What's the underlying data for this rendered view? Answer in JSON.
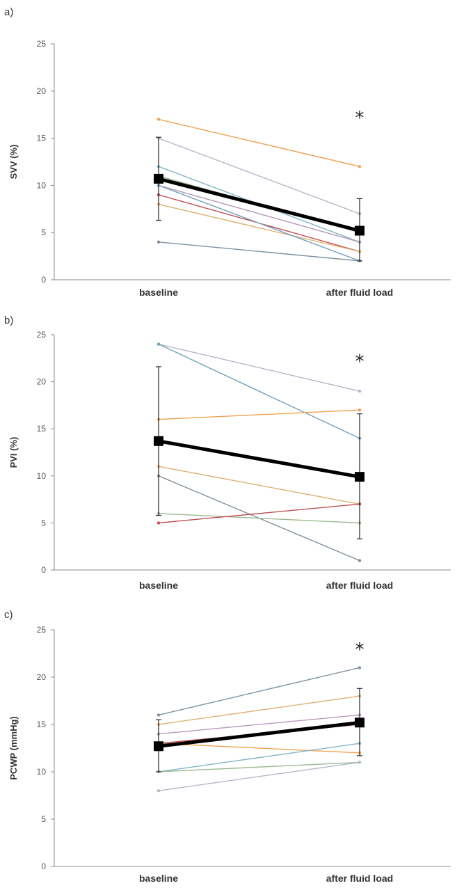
{
  "chart_data": [
    {
      "type": "line",
      "panel_label": "a)",
      "ylabel": "SVV (%)",
      "categories": [
        "baseline",
        "after fluid load"
      ],
      "ylim": [
        0,
        25
      ],
      "yticks": [
        0,
        5,
        10,
        15,
        20,
        25
      ],
      "significance": "*",
      "mean": {
        "values": [
          10.7,
          5.2
        ],
        "error": [
          [
            6.3,
            15.1
          ],
          [
            2.0,
            8.6
          ]
        ],
        "color": "#000000"
      },
      "series": [
        {
          "values": [
            17,
            12
          ],
          "color": "#f0a050"
        },
        {
          "values": [
            15,
            7
          ],
          "color": "#b0b8c8"
        },
        {
          "values": [
            12,
            4
          ],
          "color": "#7fb6c8"
        },
        {
          "values": [
            11,
            5
          ],
          "color": "#9db890"
        },
        {
          "values": [
            10,
            4
          ],
          "color": "#b59ab8"
        },
        {
          "values": [
            9,
            3
          ],
          "color": "#c05050"
        },
        {
          "values": [
            8,
            3
          ],
          "color": "#e0b070"
        },
        {
          "values": [
            10,
            2
          ],
          "color": "#70a0b8"
        },
        {
          "values": [
            4,
            2
          ],
          "color": "#8090a0"
        }
      ]
    },
    {
      "type": "line",
      "panel_label": "b)",
      "ylabel": "PVI (%)",
      "categories": [
        "baseline",
        "after fluid load"
      ],
      "ylim": [
        0,
        25
      ],
      "yticks": [
        0,
        5,
        10,
        15,
        20,
        25
      ],
      "significance": "*",
      "mean": {
        "values": [
          13.7,
          9.9
        ],
        "error": [
          [
            5.8,
            21.6
          ],
          [
            3.3,
            16.6
          ]
        ],
        "color": "#000000"
      },
      "series": [
        {
          "values": [
            24,
            19
          ],
          "color": "#b0b8c8"
        },
        {
          "values": [
            24,
            14
          ],
          "color": "#70a0b8"
        },
        {
          "values": [
            16,
            17
          ],
          "color": "#f0a050"
        },
        {
          "values": [
            11,
            7
          ],
          "color": "#e0b070"
        },
        {
          "values": [
            10,
            1
          ],
          "color": "#8090a0"
        },
        {
          "values": [
            6,
            5
          ],
          "color": "#9db890"
        },
        {
          "values": [
            5,
            7
          ],
          "color": "#c05050"
        }
      ]
    },
    {
      "type": "line",
      "panel_label": "c)",
      "ylabel": "PCWP (mmHg)",
      "categories": [
        "baseline",
        "after fluid load"
      ],
      "ylim": [
        0,
        25
      ],
      "yticks": [
        0,
        5,
        10,
        15,
        20,
        25
      ],
      "significance": "*",
      "mean": {
        "values": [
          12.7,
          15.2
        ],
        "error": [
          [
            10.0,
            15.5
          ],
          [
            11.7,
            18.8
          ]
        ],
        "color": "#000000"
      },
      "series": [
        {
          "values": [
            16,
            21
          ],
          "color": "#8090a0"
        },
        {
          "values": [
            15,
            18
          ],
          "color": "#e0b070"
        },
        {
          "values": [
            14,
            16
          ],
          "color": "#b59ab8"
        },
        {
          "values": [
            13,
            15
          ],
          "color": "#c05050"
        },
        {
          "values": [
            13,
            12
          ],
          "color": "#f0a050"
        },
        {
          "values": [
            10,
            13
          ],
          "color": "#7fb6c8"
        },
        {
          "values": [
            10,
            11
          ],
          "color": "#9db890"
        },
        {
          "values": [
            8,
            11
          ],
          "color": "#b0b8c8"
        }
      ]
    }
  ]
}
